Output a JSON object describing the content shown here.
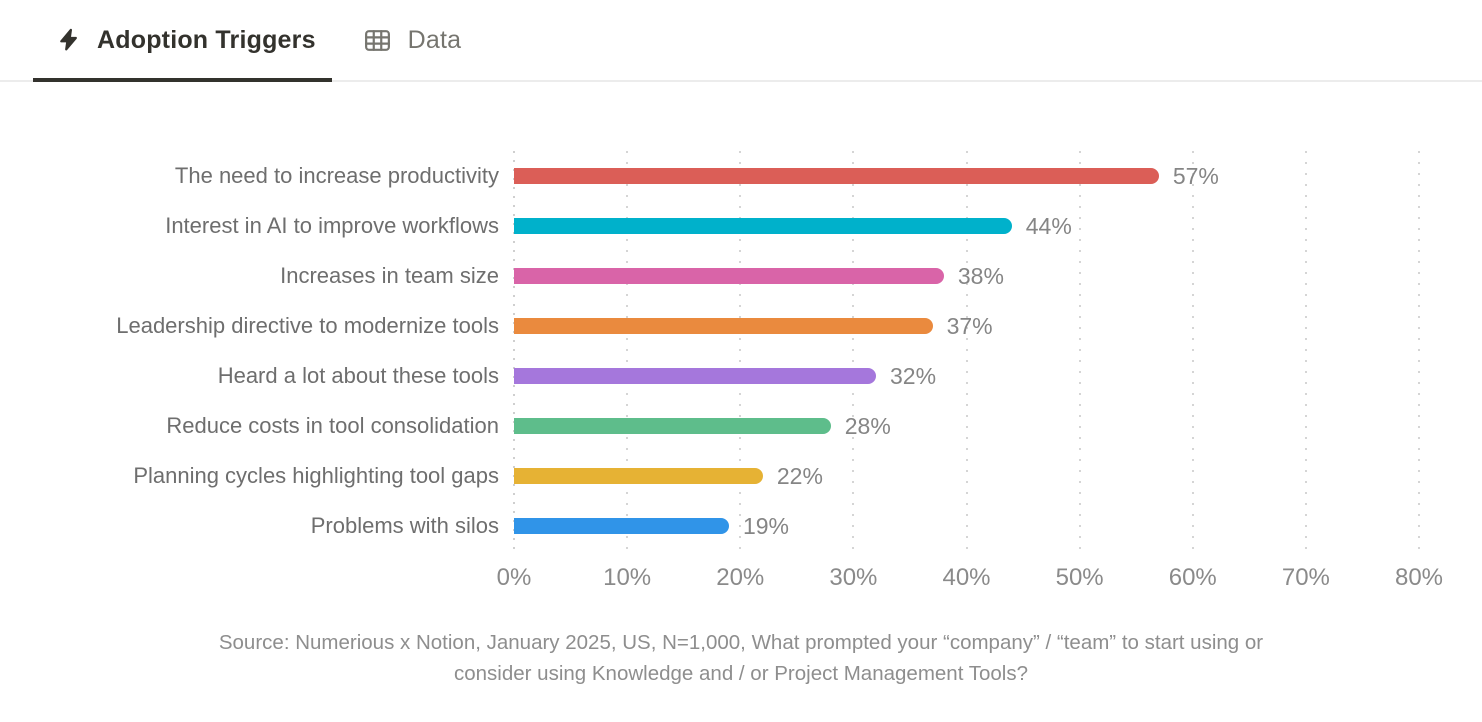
{
  "tabs": [
    {
      "label": "Adoption Triggers",
      "icon": "lightning-icon",
      "active": true
    },
    {
      "label": "Data",
      "icon": "table-icon",
      "active": false
    }
  ],
  "chart_data": {
    "type": "bar",
    "orientation": "horizontal",
    "title": "Adoption Triggers",
    "categories": [
      "The need to increase productivity",
      "Interest in AI to improve workflows",
      "Increases in team size",
      "Leadership directive to modernize tools",
      "Heard a lot about these tools",
      "Reduce costs in tool consolidation",
      "Planning cycles highlighting tool gaps",
      "Problems with silos"
    ],
    "values": [
      57,
      44,
      38,
      37,
      32,
      28,
      22,
      19
    ],
    "value_labels": [
      "57%",
      "44%",
      "38%",
      "37%",
      "32%",
      "28%",
      "22%",
      "19%"
    ],
    "bar_colors": [
      "#DB5E57",
      "#00B1CB",
      "#D964A8",
      "#EA8A3E",
      "#A577DC",
      "#5EBD8B",
      "#E6B234",
      "#3094E8"
    ],
    "xlim": [
      0,
      80
    ],
    "x_ticks": [
      "0%",
      "10%",
      "20%",
      "30%",
      "40%",
      "50%",
      "60%",
      "70%",
      "80%"
    ],
    "grid": "dotted-vertical",
    "legend": "none"
  },
  "footer": {
    "source_lines": [
      "Source: Numerious x Notion, January 2025, US, N=1,000, What prompted your “company” / “team” to start using or",
      "consider using Knowledge and / or Project Management Tools?"
    ]
  },
  "colors": {
    "active_tab": "#33322d",
    "inactive_tab": "#76756f",
    "category_label": "#6e6e6e",
    "value_label": "#858585",
    "tick_label": "#8a8a8a",
    "gridline": "#d5d5d5",
    "source_text": "#8e8e8e"
  }
}
